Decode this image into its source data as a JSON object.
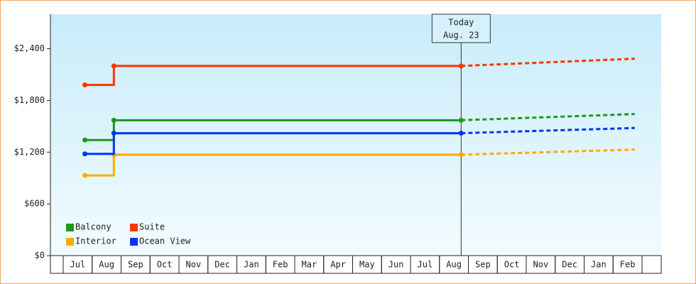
{
  "chart_data": {
    "type": "step-line",
    "categories": [
      "Jul",
      "Aug",
      "Sep",
      "Oct",
      "Nov",
      "Dec",
      "Jan",
      "Feb",
      "Mar",
      "Apr",
      "May",
      "Jun",
      "Jul",
      "Aug",
      "Sep",
      "Oct",
      "Nov",
      "Dec",
      "Jan",
      "Feb"
    ],
    "ylim": [
      0,
      2800
    ],
    "yticks": [
      {
        "value": 0,
        "label": "$0"
      },
      {
        "value": 600,
        "label": "$600"
      },
      {
        "value": 1200,
        "label": "$1,200"
      },
      {
        "value": 1800,
        "label": "$1,800"
      },
      {
        "value": 2400,
        "label": "$2,400"
      }
    ],
    "annotation": {
      "title": "Today",
      "date": "Aug. 23",
      "category_index": 13
    },
    "series": [
      {
        "name": "Balcony",
        "color": "#1a9a1a",
        "values": [
          1340,
          1570,
          1570,
          1570,
          1570,
          1570,
          1570,
          1570,
          1570,
          1570,
          1570,
          1570,
          1570,
          1570,
          null,
          null,
          null,
          null,
          null,
          null
        ],
        "forecast": [
          null,
          null,
          null,
          null,
          null,
          null,
          null,
          null,
          null,
          null,
          null,
          null,
          null,
          1570,
          1582,
          1594,
          1606,
          1618,
          1630,
          1642
        ]
      },
      {
        "name": "Suite",
        "color": "#ff3300",
        "values": [
          1980,
          2200,
          2200,
          2200,
          2200,
          2200,
          2200,
          2200,
          2200,
          2200,
          2200,
          2200,
          2200,
          2200,
          null,
          null,
          null,
          null,
          null,
          null
        ],
        "forecast": [
          null,
          null,
          null,
          null,
          null,
          null,
          null,
          null,
          null,
          null,
          null,
          null,
          null,
          2200,
          2214,
          2228,
          2242,
          2256,
          2270,
          2284
        ]
      },
      {
        "name": "Interior",
        "color": "#ffaa00",
        "values": [
          930,
          1170,
          1170,
          1170,
          1170,
          1170,
          1170,
          1170,
          1170,
          1170,
          1170,
          1170,
          1170,
          1170,
          null,
          null,
          null,
          null,
          null,
          null
        ],
        "forecast": [
          null,
          null,
          null,
          null,
          null,
          null,
          null,
          null,
          null,
          null,
          null,
          null,
          null,
          1170,
          1180,
          1190,
          1200,
          1210,
          1220,
          1230
        ]
      },
      {
        "name": "Ocean View",
        "color": "#0033ff",
        "values": [
          1180,
          1420,
          1420,
          1420,
          1420,
          1420,
          1420,
          1420,
          1420,
          1420,
          1420,
          1420,
          1420,
          1420,
          null,
          null,
          null,
          null,
          null,
          null
        ],
        "forecast": [
          null,
          null,
          null,
          null,
          null,
          null,
          null,
          null,
          null,
          null,
          null,
          null,
          null,
          1420,
          1430,
          1440,
          1450,
          1460,
          1470,
          1480
        ]
      }
    ],
    "legend": "bottom-left"
  }
}
